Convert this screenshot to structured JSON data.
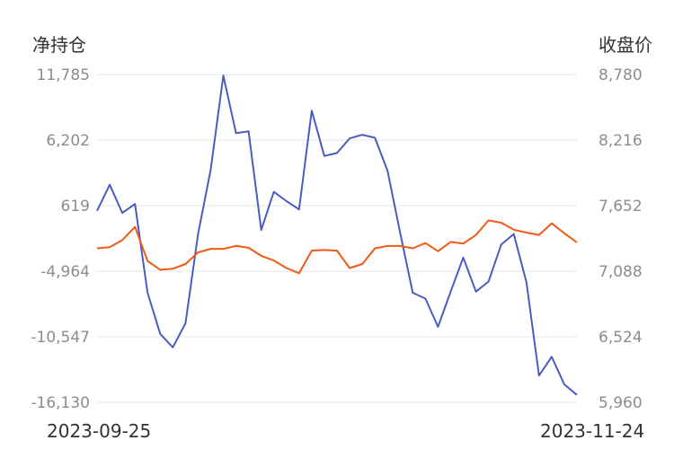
{
  "chart_data": {
    "type": "line",
    "left_axis_title": "净持仓",
    "right_axis_title": "收盘价",
    "left_ticks": [
      "11,785",
      "6,202",
      "619",
      "-4,964",
      "-10,547",
      "-16,130"
    ],
    "right_ticks": [
      "8,780",
      "8,216",
      "7,652",
      "7,088",
      "6,524",
      "5,960"
    ],
    "ylim_left": [
      -16130,
      11785
    ],
    "ylim_right": [
      5960,
      8780
    ],
    "x_start_label": "2023-09-25",
    "x_end_label": "2023-11-24",
    "grid": true,
    "series": [
      {
        "axis": "left",
        "color": "#4a5cc0",
        "values": [
          180,
          2400,
          0,
          760,
          -6800,
          -10300,
          -11450,
          -9400,
          -1800,
          3700,
          11700,
          6800,
          6950,
          -1450,
          1800,
          1000,
          300,
          8700,
          4850,
          5100,
          6350,
          6650,
          6400,
          3600,
          -1700,
          -6800,
          -7300,
          -9700,
          -6700,
          -3800,
          -6700,
          -5850,
          -2700,
          -1800,
          -5900,
          -13850,
          -12250,
          -14600,
          -15500
        ]
      },
      {
        "axis": "right",
        "color": "#f05a14",
        "values": [
          7285,
          7295,
          7355,
          7470,
          7175,
          7100,
          7110,
          7150,
          7250,
          7280,
          7280,
          7305,
          7290,
          7220,
          7180,
          7115,
          7070,
          7265,
          7270,
          7265,
          7115,
          7150,
          7285,
          7305,
          7305,
          7285,
          7330,
          7260,
          7340,
          7325,
          7400,
          7525,
          7505,
          7445,
          7420,
          7400,
          7500,
          7415,
          7335
        ]
      }
    ]
  }
}
